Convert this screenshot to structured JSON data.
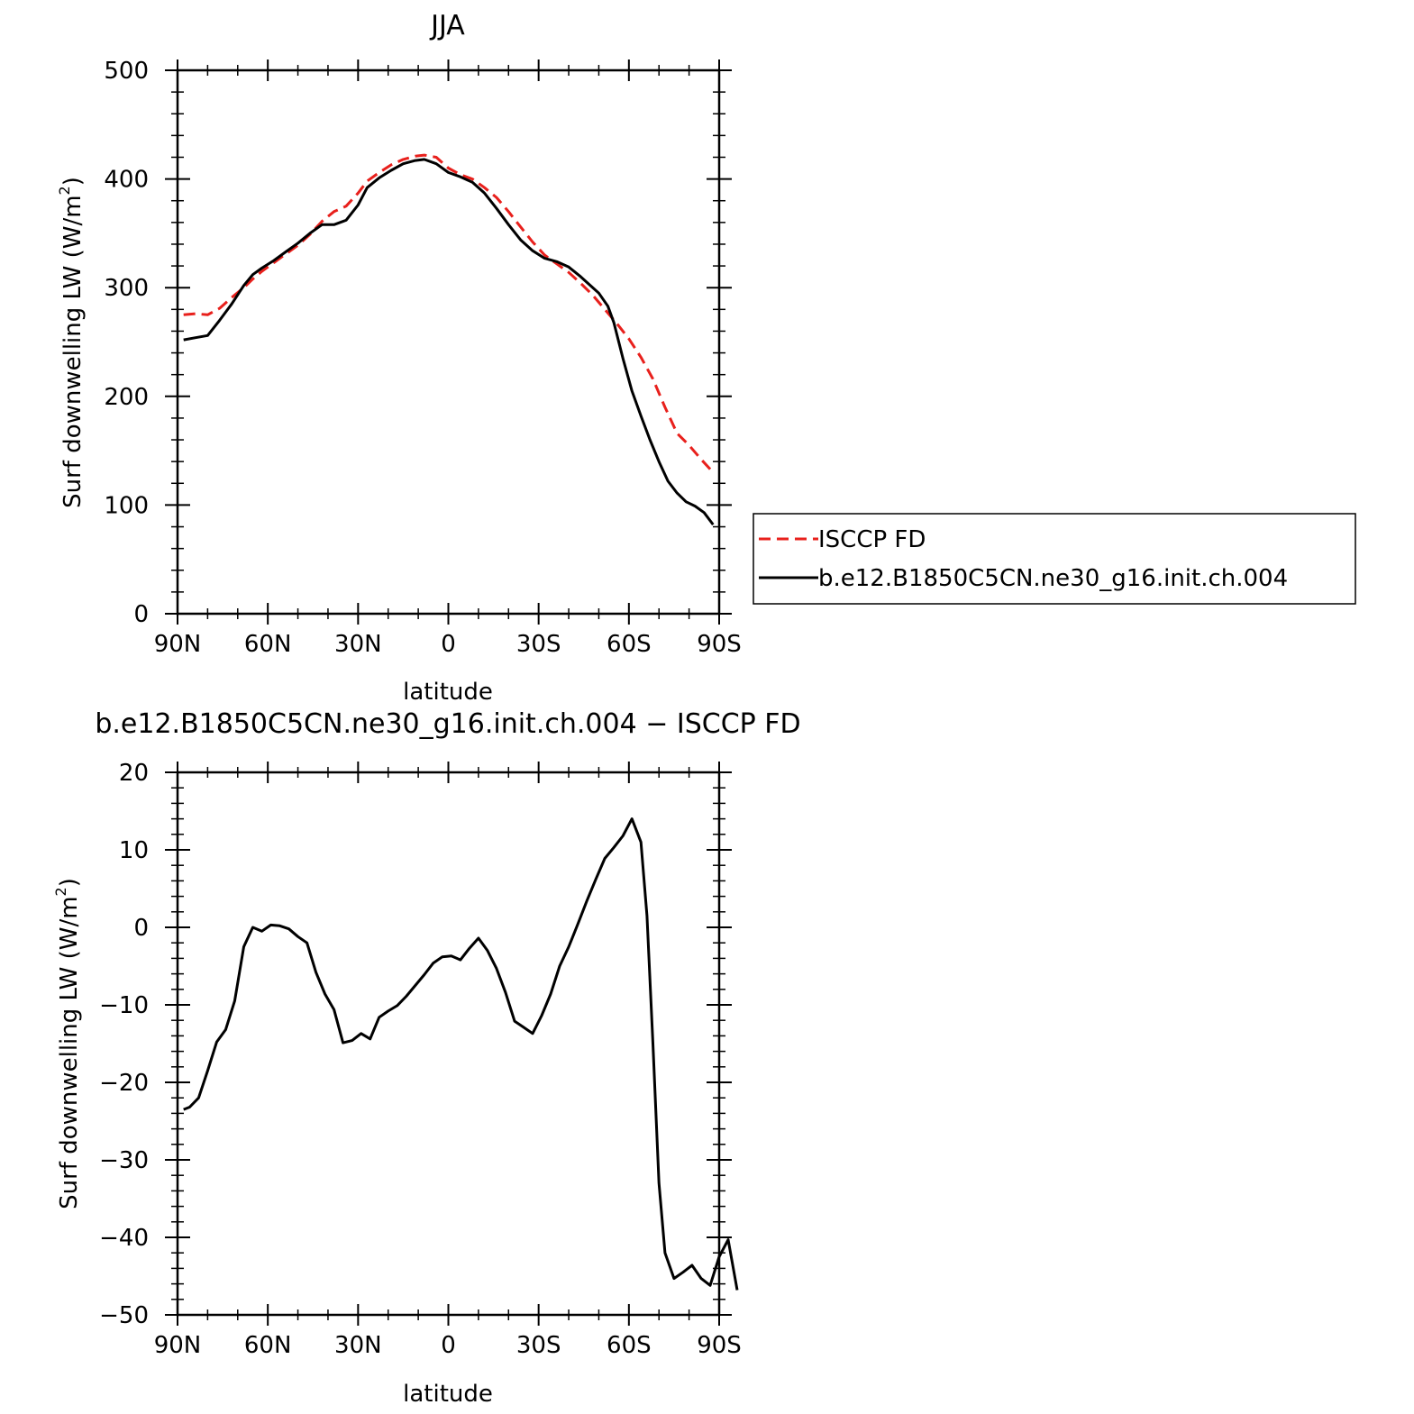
{
  "chart_data": [
    {
      "type": "line",
      "title": "JJA",
      "xlabel": "latitude",
      "ylabel": "Surf downwelling LW (W/m²)",
      "ylabel_parts": {
        "main": "Surf downwelling LW (W/m",
        "sup": "2",
        "end": ")"
      },
      "xlim": [
        90,
        -90
      ],
      "ylim": [
        0,
        500
      ],
      "x_ticks": [
        90,
        60,
        30,
        0,
        -30,
        -60,
        -90
      ],
      "x_tick_labels": [
        "90N",
        "60N",
        "30N",
        "0",
        "30S",
        "60S",
        "90S"
      ],
      "y_ticks": [
        0,
        100,
        200,
        300,
        400,
        500
      ],
      "y_tick_labels": [
        "0",
        "100",
        "200",
        "300",
        "400",
        "500"
      ],
      "grid": false,
      "legend": "right",
      "series": [
        {
          "name": "ISCCP FD",
          "color": "#e8201c",
          "dash": true,
          "points": [
            [
              88,
              275
            ],
            [
              84,
              276
            ],
            [
              80,
              275
            ],
            [
              76,
              281
            ],
            [
              72,
              291
            ],
            [
              68,
              300
            ],
            [
              65,
              308
            ],
            [
              62,
              315
            ],
            [
              58,
              323
            ],
            [
              54,
              331
            ],
            [
              50,
              339
            ],
            [
              46,
              349
            ],
            [
              42,
              361
            ],
            [
              38,
              370
            ],
            [
              34,
              375
            ],
            [
              30,
              387
            ],
            [
              27,
              398
            ],
            [
              23,
              406
            ],
            [
              19,
              413
            ],
            [
              15,
              418
            ],
            [
              11,
              421
            ],
            [
              8,
              422
            ],
            [
              4,
              420
            ],
            [
              0,
              410
            ],
            [
              -4,
              404
            ],
            [
              -8,
              400
            ],
            [
              -12,
              392
            ],
            [
              -16,
              383
            ],
            [
              -20,
              370
            ],
            [
              -24,
              356
            ],
            [
              -28,
              342
            ],
            [
              -32,
              330
            ],
            [
              -36,
              322
            ],
            [
              -40,
              314
            ],
            [
              -44,
              304
            ],
            [
              -48,
              293
            ],
            [
              -52,
              280
            ],
            [
              -56,
              267
            ],
            [
              -60,
              253
            ],
            [
              -64,
              236
            ],
            [
              -68,
              216
            ],
            [
              -72,
              190
            ],
            [
              -76,
              166
            ],
            [
              -80,
              155
            ],
            [
              -84,
              142
            ],
            [
              -88,
              130
            ]
          ]
        },
        {
          "name": "b.e12.B1850C5CN.ne30_g16.init.ch.004",
          "color": "#000000",
          "dash": false,
          "points": [
            [
              88,
              252
            ],
            [
              84,
              254
            ],
            [
              80,
              256
            ],
            [
              76,
              270
            ],
            [
              72,
              285
            ],
            [
              68,
              302
            ],
            [
              65,
              312
            ],
            [
              62,
              318
            ],
            [
              58,
              325
            ],
            [
              54,
              333
            ],
            [
              50,
              341
            ],
            [
              46,
              350
            ],
            [
              42,
              358
            ],
            [
              38,
              358
            ],
            [
              34,
              362
            ],
            [
              30,
              376
            ],
            [
              27,
              392
            ],
            [
              23,
              401
            ],
            [
              19,
              408
            ],
            [
              15,
              414
            ],
            [
              11,
              417
            ],
            [
              8,
              418
            ],
            [
              4,
              414
            ],
            [
              0,
              406
            ],
            [
              -4,
              402
            ],
            [
              -8,
              397
            ],
            [
              -12,
              387
            ],
            [
              -16,
              373
            ],
            [
              -20,
              358
            ],
            [
              -24,
              344
            ],
            [
              -28,
              334
            ],
            [
              -32,
              327
            ],
            [
              -36,
              324
            ],
            [
              -40,
              319
            ],
            [
              -44,
              310
            ],
            [
              -48,
              300
            ],
            [
              -50,
              295
            ],
            [
              -53,
              283
            ],
            [
              -55,
              268
            ],
            [
              -58,
              235
            ],
            [
              -61,
              205
            ],
            [
              -64,
              182
            ],
            [
              -67,
              160
            ],
            [
              -70,
              140
            ],
            [
              -73,
              122
            ],
            [
              -76,
              111
            ],
            [
              -79,
              103
            ],
            [
              -82,
              99
            ],
            [
              -85,
              93
            ],
            [
              -88,
              82
            ]
          ]
        }
      ]
    },
    {
      "type": "line",
      "title": "b.e12.B1850C5CN.ne30_g16.init.ch.004 − ISCCP FD",
      "xlabel": "latitude",
      "ylabel": "Surf downwelling LW (W/m²)",
      "ylabel_parts": {
        "main": "Surf downwelling LW (W/m",
        "sup": "2",
        "end": ")"
      },
      "xlim": [
        90,
        -90
      ],
      "ylim": [
        -50,
        20
      ],
      "x_ticks": [
        90,
        60,
        30,
        0,
        -30,
        -60,
        -90
      ],
      "x_tick_labels": [
        "90N",
        "60N",
        "30N",
        "0",
        "30S",
        "60S",
        "90S"
      ],
      "y_ticks": [
        -50,
        -40,
        -30,
        -20,
        -10,
        0,
        10,
        20
      ],
      "y_tick_labels": [
        "−50",
        "−40",
        "−30",
        "−20",
        "−10",
        "0",
        "10",
        "20"
      ],
      "grid": false,
      "series": [
        {
          "color": "#000000",
          "dash": false,
          "points": [
            [
              88,
              -23.5
            ],
            [
              86,
              -23.2
            ],
            [
              83,
              -22.0
            ],
            [
              80,
              -18.5
            ],
            [
              77,
              -14.8
            ],
            [
              74,
              -13.2
            ],
            [
              71,
              -9.5
            ],
            [
              68,
              -2.5
            ],
            [
              65,
              0.0
            ],
            [
              62,
              -0.5
            ],
            [
              59,
              0.3
            ],
            [
              56,
              0.2
            ],
            [
              53,
              -0.2
            ],
            [
              50,
              -1.2
            ],
            [
              47,
              -2.0
            ],
            [
              44,
              -5.8
            ],
            [
              41,
              -8.6
            ],
            [
              38,
              -10.6
            ],
            [
              35,
              -14.9
            ],
            [
              32,
              -14.6
            ],
            [
              29,
              -13.7
            ],
            [
              26,
              -14.4
            ],
            [
              23,
              -11.6
            ],
            [
              20,
              -10.8
            ],
            [
              17,
              -10.1
            ],
            [
              14,
              -8.9
            ],
            [
              11,
              -7.5
            ],
            [
              8,
              -6.1
            ],
            [
              5,
              -4.6
            ],
            [
              2,
              -3.8
            ],
            [
              -1,
              -3.7
            ],
            [
              -4,
              -4.2
            ],
            [
              -7,
              -2.7
            ],
            [
              -10,
              -1.4
            ],
            [
              -13,
              -3.0
            ],
            [
              -16,
              -5.3
            ],
            [
              -19,
              -8.4
            ],
            [
              -22,
              -12.1
            ],
            [
              -25,
              -12.9
            ],
            [
              -28,
              -13.7
            ],
            [
              -31,
              -11.4
            ],
            [
              -34,
              -8.6
            ],
            [
              -37,
              -5.0
            ],
            [
              -40,
              -2.5
            ],
            [
              -43,
              0.4
            ],
            [
              -46,
              3.4
            ],
            [
              -49,
              6.2
            ],
            [
              -52,
              8.9
            ],
            [
              -55,
              10.3
            ],
            [
              -58,
              11.8
            ],
            [
              -61,
              14.0
            ],
            [
              -64,
              11.0
            ],
            [
              -66,
              1.5
            ],
            [
              -68,
              -15.0
            ],
            [
              -70,
              -33.0
            ],
            [
              -72,
              -42.0
            ],
            [
              -75,
              -45.3
            ],
            [
              -78,
              -44.5
            ],
            [
              -81,
              -43.6
            ],
            [
              -84,
              -45.3
            ],
            [
              -87,
              -46.2
            ],
            [
              -90,
              -42.5
            ],
            [
              -93,
              -40.3
            ],
            [
              -96,
              -46.8
            ]
          ]
        }
      ]
    }
  ]
}
